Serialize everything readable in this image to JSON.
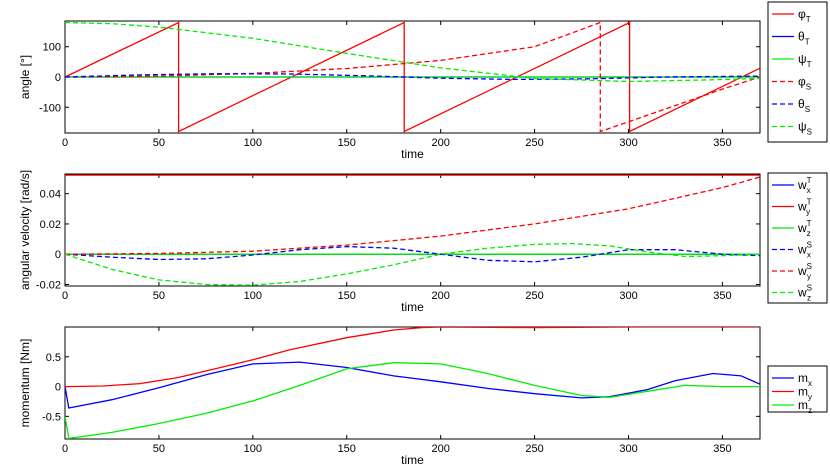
{
  "chart_data": [
    {
      "type": "line",
      "xlabel": "time",
      "ylabel": "angle [°]",
      "xlim": [
        0,
        370
      ],
      "ylim": [
        -185,
        185
      ],
      "xticks": [
        0,
        50,
        100,
        150,
        200,
        250,
        300,
        350
      ],
      "yticks": [
        100,
        0,
        -100
      ],
      "grid": false,
      "legend_position": "right",
      "series": [
        {
          "name": "φ",
          "sub": "T",
          "color": "#ff0000",
          "style": "solid",
          "x": [
            0,
            60.5,
            60.5,
            180.6,
            180.6,
            300.6,
            300.6,
            370
          ],
          "y": [
            0,
            180,
            -180,
            180,
            -180,
            180,
            -180,
            29
          ]
        },
        {
          "name": "θ",
          "sub": "T",
          "color": "#0000ff",
          "style": "solid",
          "x": [
            0,
            370
          ],
          "y": [
            0,
            0
          ]
        },
        {
          "name": "ψ",
          "sub": "T",
          "color": "#00ee00",
          "style": "solid",
          "x": [
            0,
            370
          ],
          "y": [
            0,
            0
          ]
        },
        {
          "name": "φ",
          "sub": "S",
          "color": "#ff0000",
          "style": "dashed",
          "x": [
            0,
            50,
            100,
            150,
            200,
            250,
            285,
            285,
            300,
            350,
            370
          ],
          "y": [
            0,
            3,
            12,
            28,
            55,
            100,
            180,
            -180,
            -148,
            -40,
            0
          ]
        },
        {
          "name": "θ",
          "sub": "S",
          "color": "#0000ff",
          "style": "dashed",
          "x": [
            0,
            40,
            80,
            120,
            160,
            200,
            240,
            280,
            320,
            370
          ],
          "y": [
            0,
            7,
            11,
            10,
            4,
            -4,
            -8,
            -6,
            0,
            3
          ]
        },
        {
          "name": "ψ",
          "sub": "S",
          "color": "#00ee00",
          "style": "dashed",
          "x": [
            0,
            25,
            50,
            100,
            150,
            200,
            250,
            300,
            340,
            370
          ],
          "y": [
            180,
            176,
            165,
            128,
            78,
            30,
            -5,
            -15,
            -10,
            -5
          ]
        }
      ]
    },
    {
      "type": "line",
      "xlabel": "time",
      "ylabel": "angular velocity [rad/s]",
      "xlim": [
        0,
        370
      ],
      "ylim": [
        -0.021,
        0.053
      ],
      "xticks": [
        0,
        50,
        100,
        150,
        200,
        250,
        300,
        350
      ],
      "yticks": [
        0.04,
        0.02,
        0,
        -0.02
      ],
      "ytick_labels": [
        "0.04",
        "0.02",
        "0",
        "-0.02"
      ],
      "grid": false,
      "legend_position": "right",
      "series": [
        {
          "name": "w",
          "sub": "x",
          "sup": "T",
          "color": "#0000ff",
          "style": "solid",
          "x": [
            0,
            370
          ],
          "y": [
            0,
            0
          ]
        },
        {
          "name": "w",
          "sub": "y",
          "sup": "T",
          "color": "#ff0000",
          "style": "solid",
          "x": [
            0,
            370
          ],
          "y": [
            0.0523,
            0.0523
          ]
        },
        {
          "name": "w",
          "sub": "z",
          "sup": "T",
          "color": "#00ee00",
          "style": "solid",
          "x": [
            0,
            370
          ],
          "y": [
            0,
            0
          ]
        },
        {
          "name": "w",
          "sub": "x",
          "sup": "S",
          "color": "#0000ff",
          "style": "dashed",
          "x": [
            0,
            25,
            50,
            75,
            100,
            125,
            150,
            175,
            200,
            225,
            250,
            275,
            300,
            325,
            350,
            370
          ],
          "y": [
            0,
            -0.002,
            -0.0035,
            -0.003,
            -0.0005,
            0.003,
            0.005,
            0.004,
            0,
            -0.004,
            -0.005,
            -0.002,
            0.003,
            0.003,
            0,
            -0.001
          ]
        },
        {
          "name": "w",
          "sub": "y",
          "sup": "S",
          "color": "#ff0000",
          "style": "dashed",
          "x": [
            0,
            50,
            100,
            150,
            200,
            250,
            300,
            350,
            370
          ],
          "y": [
            0,
            0.0005,
            0.002,
            0.006,
            0.012,
            0.02,
            0.03,
            0.044,
            0.051
          ]
        },
        {
          "name": "w",
          "sub": "z",
          "sup": "S",
          "color": "#00ee00",
          "style": "dashed",
          "x": [
            0,
            25,
            50,
            75,
            100,
            125,
            150,
            175,
            200,
            225,
            250,
            270,
            290,
            310,
            330,
            350,
            370
          ],
          "y": [
            0,
            -0.01,
            -0.017,
            -0.02,
            -0.0205,
            -0.018,
            -0.013,
            -0.007,
            0,
            0.004,
            0.0065,
            0.007,
            0.0055,
            0.0015,
            -0.0015,
            -0.001,
            0
          ]
        }
      ]
    },
    {
      "type": "line",
      "xlabel": "time",
      "ylabel": "momentum [Nm]",
      "xlim": [
        0,
        370
      ],
      "ylim": [
        -0.88,
        1.0
      ],
      "xticks": [
        0,
        50,
        100,
        150,
        200,
        250,
        300,
        350
      ],
      "yticks": [
        0.5,
        0,
        -0.5
      ],
      "ytick_labels": [
        "0.5",
        "0",
        "-0.5"
      ],
      "grid": false,
      "legend_position": "right",
      "series": [
        {
          "name": "m",
          "sub": "x",
          "color": "#0000ff",
          "style": "solid",
          "x": [
            0,
            2,
            25,
            50,
            75,
            100,
            125,
            150,
            175,
            200,
            225,
            250,
            275,
            290,
            310,
            325,
            345,
            360,
            370
          ],
          "y": [
            0,
            -0.36,
            -0.22,
            -0.02,
            0.2,
            0.38,
            0.41,
            0.32,
            0.18,
            0.08,
            -0.03,
            -0.12,
            -0.19,
            -0.17,
            -0.05,
            0.1,
            0.22,
            0.18,
            0.04
          ]
        },
        {
          "name": "m",
          "sub": "y",
          "color": "#ff0000",
          "style": "solid",
          "x": [
            0,
            20,
            40,
            60,
            80,
            100,
            120,
            150,
            175,
            190,
            200,
            250,
            300,
            370
          ],
          "y": [
            0,
            0.01,
            0.05,
            0.15,
            0.3,
            0.45,
            0.62,
            0.82,
            0.95,
            0.99,
            1.0,
            0.99,
            1.0,
            1.0
          ]
        },
        {
          "name": "m",
          "sub": "z",
          "color": "#00ee00",
          "style": "solid",
          "x": [
            0,
            2,
            25,
            50,
            75,
            100,
            125,
            150,
            175,
            200,
            225,
            250,
            275,
            290,
            310,
            330,
            350,
            370
          ],
          "y": [
            -0.5,
            -0.87,
            -0.77,
            -0.62,
            -0.45,
            -0.24,
            0.02,
            0.3,
            0.4,
            0.38,
            0.22,
            0.02,
            -0.15,
            -0.18,
            -0.08,
            0.02,
            0.0,
            0.0
          ]
        }
      ]
    }
  ]
}
